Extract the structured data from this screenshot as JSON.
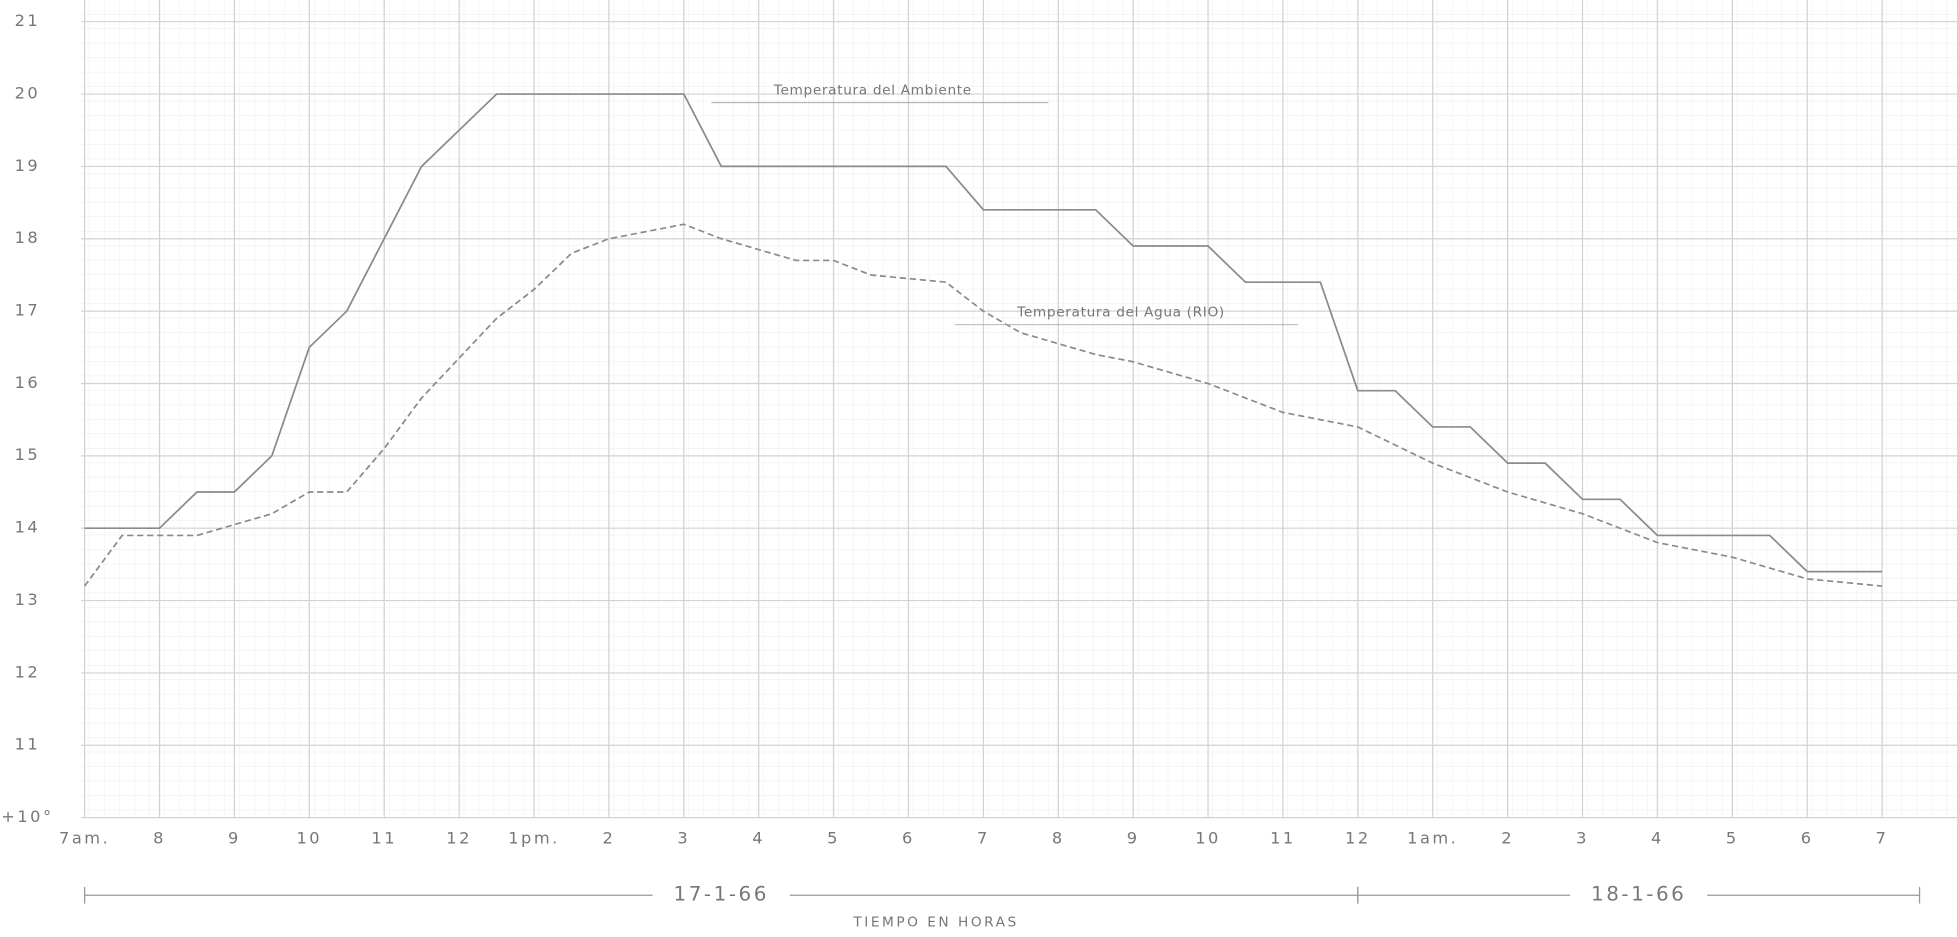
{
  "chart_data": {
    "type": "line",
    "xlabel": "TIEMPO EN HORAS",
    "xlim": [
      5.87,
      32
    ],
    "ylim": [
      10,
      21.3
    ],
    "xticks": [
      {
        "value": 7,
        "label": "7am."
      },
      8,
      9,
      10,
      11,
      12,
      {
        "value": 13,
        "label": "1pm."
      },
      {
        "value": 14,
        "label": "2"
      },
      {
        "value": 15,
        "label": "3"
      },
      {
        "value": 16,
        "label": "4"
      },
      {
        "value": 17,
        "label": "5"
      },
      {
        "value": 18,
        "label": "6"
      },
      {
        "value": 19,
        "label": "7"
      },
      {
        "value": 20,
        "label": "8"
      },
      {
        "value": 21,
        "label": "9"
      },
      {
        "value": 22,
        "label": "10"
      },
      {
        "value": 23,
        "label": "11"
      },
      {
        "value": 24,
        "label": "12"
      },
      {
        "value": 25,
        "label": "1am."
      },
      {
        "value": 26,
        "label": "2"
      },
      {
        "value": 27,
        "label": "3"
      },
      {
        "value": 28,
        "label": "4"
      },
      {
        "value": 29,
        "label": "5"
      },
      {
        "value": 30,
        "label": "6"
      },
      {
        "value": 31,
        "label": "7"
      }
    ],
    "yticks": [
      {
        "value": 10,
        "label": "+10°"
      },
      11,
      12,
      13,
      14,
      15,
      16,
      17,
      18,
      19,
      20,
      21
    ],
    "date_ranges": [
      {
        "label": "17-1-66",
        "start": 7,
        "end": 24
      },
      {
        "label": "18-1-66",
        "start": 24,
        "end": 31.5
      }
    ],
    "series": [
      {
        "name": "Temperatura del Ambiente",
        "color": "#8a8a8a",
        "dash": false,
        "x": [
          7,
          8,
          8.5,
          9,
          9.5,
          10,
          10.5,
          11,
          11.5,
          12.5,
          15,
          15.5,
          18.5,
          19,
          20.5,
          21,
          22,
          22.5,
          23.5,
          24,
          24.5,
          25,
          25.5,
          26,
          26.5,
          27,
          27.5,
          28,
          29.5,
          30,
          31
        ],
        "values": [
          14,
          14,
          14.5,
          14.5,
          15,
          16.5,
          17,
          18,
          19,
          20,
          20,
          19,
          19,
          18.4,
          18.4,
          17.9,
          17.9,
          17.4,
          17.4,
          15.9,
          15.9,
          15.4,
          15.4,
          14.9,
          14.9,
          14.4,
          14.4,
          13.9,
          13.9,
          13.4,
          13.4
        ]
      },
      {
        "name": "Temperatura del Agua (RIO)",
        "color": "#8a8a8a",
        "dash": true,
        "x": [
          7,
          7.5,
          8.5,
          9.5,
          10,
          10.5,
          11,
          11.5,
          12.5,
          13,
          13.5,
          14,
          14.5,
          15,
          15.5,
          16.5,
          17,
          17.5,
          18.5,
          19,
          19.5,
          20.5,
          21,
          22,
          23,
          24,
          25,
          26,
          27,
          28,
          29,
          30,
          31
        ],
        "values": [
          13.2,
          13.9,
          13.9,
          14.2,
          14.5,
          14.5,
          15.1,
          15.8,
          16.9,
          17.3,
          17.8,
          18,
          18.1,
          18.2,
          18,
          17.7,
          17.7,
          17.5,
          17.4,
          17,
          16.7,
          16.4,
          16.3,
          16,
          15.6,
          15.4,
          14.9,
          14.5,
          14.2,
          13.8,
          13.6,
          13.3,
          13.2
        ]
      }
    ]
  }
}
